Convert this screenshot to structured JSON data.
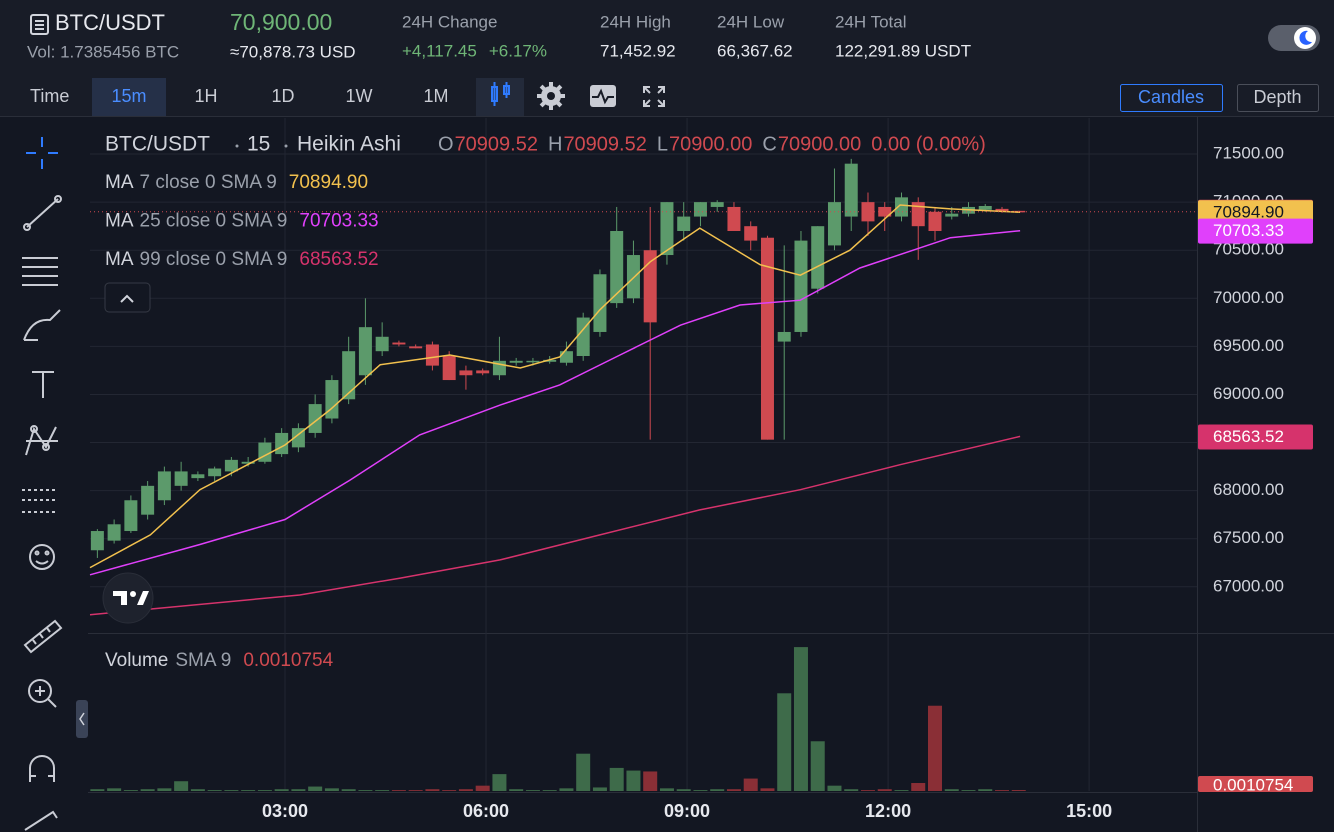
{
  "header": {
    "symbol": "BTC/USDT",
    "last_price": "70,900.00",
    "volume": "Vol: 1.7385456 BTC",
    "usd_price": "≈70,878.73 USD",
    "stats": [
      {
        "label": "24H Change",
        "values": [
          "+4,117.45",
          "+6.17%"
        ]
      },
      {
        "label": "24H High",
        "values": [
          "71,452.92"
        ]
      },
      {
        "label": "24H Low",
        "values": [
          "66,367.62"
        ]
      },
      {
        "label": "24H Total",
        "values": [
          "122,291.89 USDT"
        ]
      }
    ]
  },
  "toolbar": {
    "time_label": "Time",
    "intervals": [
      "15m",
      "1H",
      "1D",
      "1W",
      "1M"
    ],
    "active_interval": 0,
    "views": [
      "Candles",
      "Depth"
    ],
    "active_view": 0
  },
  "chart_data": {
    "type": "candlestick",
    "symbol": "BTC/USDT",
    "interval": "15",
    "chart_style": "Heikin Ashi",
    "ohlc_letters": [
      "O",
      "H",
      "L",
      "C"
    ],
    "last_ohlc": [
      "70909.52",
      "70909.52",
      "70900.00",
      "70900.00"
    ],
    "last_change": "0.00 (0.00%)",
    "up_color": "#5c9a6b",
    "down_color": "#d04a50",
    "x": [
      0.2,
      0.45,
      0.7,
      0.95,
      1.2,
      1.45,
      1.7,
      1.95,
      2.2,
      2.45,
      2.7,
      2.95,
      3.2,
      3.45,
      3.7,
      3.95,
      4.2,
      4.45,
      4.7,
      4.95,
      5.2,
      5.45,
      5.7,
      5.95,
      6.2,
      6.45,
      6.7,
      6.95,
      7.2,
      7.45,
      7.7,
      7.95,
      8.2,
      8.45,
      8.7,
      8.95,
      9.2,
      9.45,
      9.7,
      9.95,
      10.2,
      10.45,
      10.7,
      10.95,
      11.2,
      11.45,
      11.7,
      11.95,
      12.2,
      12.45,
      12.7,
      12.95,
      13.2,
      13.45,
      13.7,
      13.95
    ],
    "open": [
      67380,
      67480,
      67580,
      67750,
      67900,
      68050,
      68130,
      68150,
      68200,
      68280,
      68300,
      68380,
      68450,
      68600,
      68750,
      68950,
      69200,
      69450,
      69540,
      69500,
      69520,
      69400,
      69250,
      69250,
      69200,
      69330,
      69340,
      69340,
      69330,
      69400,
      69650,
      69950,
      70000,
      70500,
      70450,
      70700,
      70850,
      70950,
      70950,
      70750,
      70630,
      69550,
      69650,
      70100,
      70550,
      70850,
      71000,
      70950,
      70850,
      71000,
      70900,
      70850,
      70880,
      70920,
      70930,
      70909.52
    ],
    "high": [
      67600,
      67700,
      67950,
      68100,
      68250,
      68300,
      68200,
      68250,
      68350,
      68350,
      68550,
      68650,
      68700,
      69000,
      69200,
      69600,
      70000,
      69750,
      69560,
      69520,
      69550,
      69450,
      69300,
      69270,
      69600,
      69380,
      69380,
      69400,
      69550,
      69850,
      70300,
      70950,
      70600,
      70950,
      71000,
      71000,
      71000,
      71020,
      71000,
      70800,
      70650,
      70550,
      70700,
      70750,
      71350,
      71450,
      71100,
      71000,
      71100,
      71050,
      70950,
      70950,
      71000,
      70980,
      70950,
      70909.52
    ],
    "low": [
      67300,
      67450,
      67560,
      67700,
      67850,
      68000,
      68100,
      68100,
      68150,
      68250,
      68280,
      68350,
      68400,
      68550,
      68700,
      68900,
      69100,
      69400,
      69500,
      69480,
      69250,
      69150,
      69050,
      69200,
      69150,
      69300,
      69300,
      69320,
      69300,
      69350,
      69600,
      69900,
      69950,
      68530,
      70350,
      70600,
      70750,
      70900,
      70700,
      70500,
      68530,
      68530,
      69600,
      70050,
      70500,
      70700,
      70650,
      70700,
      70800,
      70400,
      70600,
      70820,
      70850,
      70900,
      70890,
      70900
    ],
    "close": [
      67580,
      67650,
      67900,
      68050,
      68200,
      68200,
      68170,
      68230,
      68320,
      68300,
      68500,
      68600,
      68650,
      68900,
      69150,
      69450,
      69700,
      69600,
      69520,
      69480,
      69300,
      69150,
      69200,
      69220,
      69350,
      69350,
      69350,
      69360,
      69450,
      69800,
      70250,
      70700,
      70450,
      69750,
      71000,
      70850,
      71000,
      71000,
      70700,
      70600,
      68530,
      69650,
      70600,
      70750,
      71000,
      71400,
      70800,
      70850,
      71050,
      70750,
      70700,
      70880,
      70950,
      70960,
      70900,
      70900
    ],
    "xlim": [
      0.09,
      16.61
    ],
    "xticks": [
      {
        "value": 3,
        "label": "03:00"
      },
      {
        "value": 6,
        "label": "06:00"
      },
      {
        "value": 9,
        "label": "09:00"
      },
      {
        "value": 12,
        "label": "12:00"
      },
      {
        "value": 15,
        "label": "15:00"
      }
    ],
    "ylim": [
      66530,
      71875
    ],
    "yticks": [
      {
        "value": 67000,
        "label": "67000.00"
      },
      {
        "value": 67500,
        "label": "67500.00"
      },
      {
        "value": 68000,
        "label": "68000.00"
      },
      {
        "value": 68500,
        "label": "68500.00"
      },
      {
        "value": 69000,
        "label": "69000.00"
      },
      {
        "value": 69500,
        "label": "69500.00"
      },
      {
        "value": 70000,
        "label": "70000.00"
      },
      {
        "value": 70500,
        "label": "70500.00"
      },
      {
        "value": 71000,
        "label": "71000.00"
      },
      {
        "value": 71500,
        "label": "71500.00"
      }
    ],
    "grid": true,
    "moving_averages": [
      {
        "name": "MA",
        "params": "7 close 0 SMA 9",
        "color": "#f2c14e",
        "x": [
          0.09,
          0.99,
          1.73,
          3.0,
          3.67,
          4.42,
          5.46,
          6.51,
          7.1,
          7.7,
          8.45,
          9.19,
          10.09,
          10.69,
          11.43,
          12.18,
          12.93,
          13.97
        ],
        "values": [
          67200,
          67540,
          68010,
          68475,
          68840,
          69310,
          69410,
          69275,
          69390,
          69880,
          70380,
          70730,
          70350,
          70240,
          70500,
          70970,
          70930,
          70894.9
        ],
        "value_label": "70894.90"
      },
      {
        "name": "MA",
        "params": "25 close 0 SMA 9",
        "color": "#e040fb",
        "x": [
          0.09,
          1.73,
          3.0,
          3.97,
          5.01,
          6.21,
          7.1,
          8.0,
          8.9,
          9.79,
          10.69,
          11.58,
          12.93,
          13.97
        ],
        "values": [
          67125,
          67440,
          67700,
          68110,
          68580,
          68890,
          69100,
          69410,
          69720,
          69930,
          69980,
          70315,
          70630,
          70703.33
        ],
        "value_label": "70703.33"
      },
      {
        "name": "MA",
        "params": "99 close 0 SMA 9",
        "color": "#d6336c",
        "x": [
          0.09,
          3.22,
          4.72,
          6.21,
          7.7,
          9.19,
          10.69,
          12.18,
          13.97
        ],
        "values": [
          66710,
          66915,
          67090,
          67280,
          67540,
          67800,
          68010,
          68270,
          68563.52
        ],
        "value_label": "68563.52"
      }
    ],
    "volume": {
      "name": "Volume",
      "indicator": "SMA 9",
      "up_color": "#3e6b4a",
      "down_color": "#8a2f36",
      "ylim": [
        0,
        0.17
      ],
      "values": [
        0.002,
        0.003,
        0.001,
        0.002,
        0.003,
        0.011,
        0.002,
        0.001,
        0.001,
        0.001,
        0.001,
        0.002,
        0.002,
        0.005,
        0.003,
        0.002,
        0.001,
        0.001,
        0.001,
        0.001,
        0.002,
        0.001,
        0.002,
        0.006,
        0.019,
        0.002,
        0.001,
        0.001,
        0.003,
        0.042,
        0.004,
        0.026,
        0.023,
        0.022,
        0.003,
        0.002,
        0.001,
        0.002,
        0.002,
        0.014,
        0.003,
        0.11,
        0.162,
        0.056,
        0.006,
        0.002,
        0.001,
        0.002,
        0.001,
        0.009,
        0.096,
        0.002,
        0.001,
        0.002,
        0.001,
        0.0010754
      ]
    }
  }
}
